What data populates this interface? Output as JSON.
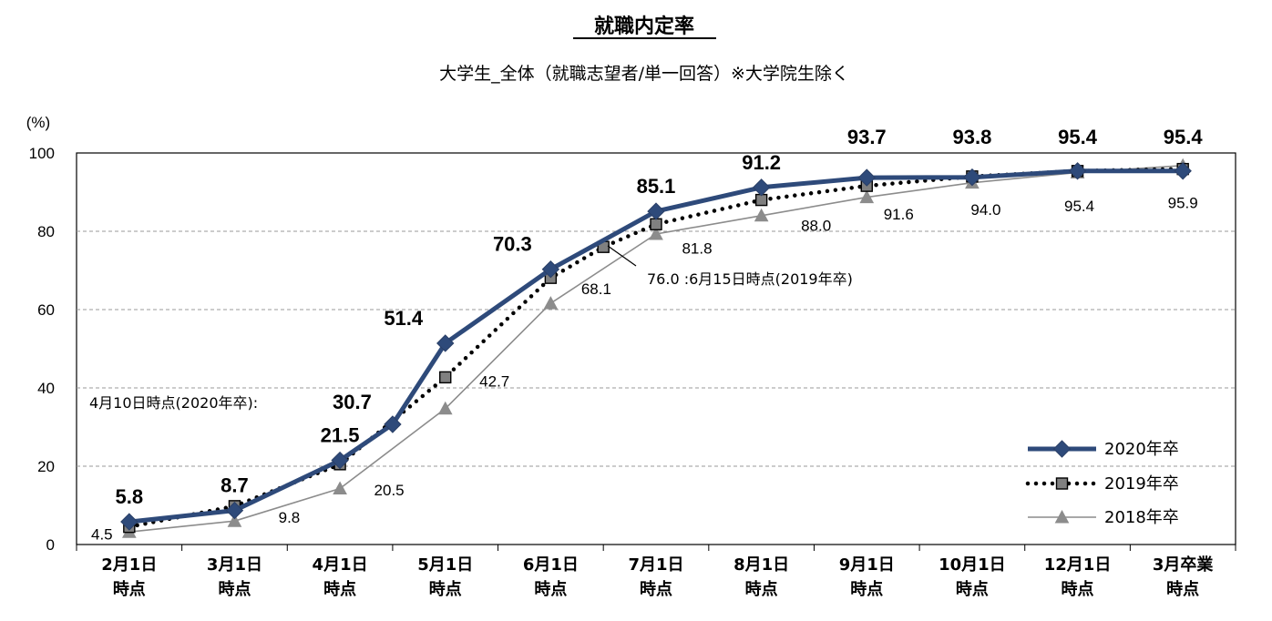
{
  "chart_data": {
    "type": "line",
    "title": "就職内定率",
    "subtitle": "大学生_全体（就職志望者/単一回答）※大学院生除く",
    "y_unit": "(%)",
    "ylim": [
      0,
      100
    ],
    "y_ticks": [
      "0",
      "20",
      "40",
      "60",
      "80",
      "100"
    ],
    "grid": "horizontal-dashed",
    "legend_position": "bottom-right",
    "categories": [
      [
        "2月1日",
        "時点"
      ],
      [
        "3月1日",
        "時点"
      ],
      [
        "4月1日",
        "時点"
      ],
      [
        "5月1日",
        "時点"
      ],
      [
        "6月1日",
        "時点"
      ],
      [
        "7月1日",
        "時点"
      ],
      [
        "8月1日",
        "時点"
      ],
      [
        "9月1日",
        "時点"
      ],
      [
        "10月1日",
        "時点"
      ],
      [
        "12月1日",
        "時点"
      ],
      [
        "3月卒業",
        "時点"
      ]
    ],
    "series": [
      {
        "name": "2020年卒",
        "color": "#2e4a7a",
        "marker": "diamond",
        "style": "solid-thick",
        "x": [
          0,
          1,
          2,
          2.5,
          3,
          4,
          5,
          6,
          7,
          8,
          9,
          10
        ],
        "y": [
          5.8,
          8.7,
          21.5,
          30.7,
          51.4,
          70.3,
          85.1,
          91.2,
          93.7,
          93.8,
          95.4,
          95.4
        ],
        "labels": [
          "5.8",
          "8.7",
          "21.5",
          "",
          "51.4",
          "70.3",
          "85.1",
          "91.2",
          "93.7",
          "93.8",
          "95.4",
          "95.4"
        ]
      },
      {
        "name": "2019年卒",
        "color": "#000000",
        "marker_fill": "#808080",
        "marker": "square",
        "style": "dotted",
        "x": [
          0,
          1,
          2,
          3,
          4,
          4.5,
          5,
          6,
          7,
          8,
          9,
          10
        ],
        "y": [
          4.5,
          9.8,
          20.5,
          42.7,
          68.1,
          76.0,
          81.8,
          88.0,
          91.6,
          94.0,
          95.4,
          95.9
        ],
        "labels": [
          "4.5",
          "9.8",
          "20.5",
          "42.7",
          "68.1",
          "",
          "81.8",
          "88.0",
          "91.6",
          "94.0",
          "95.4",
          "95.9"
        ]
      },
      {
        "name": "2018年卒",
        "color": "#8c8c8c",
        "marker": "triangle",
        "style": "solid-thin",
        "x": [
          0,
          1,
          2,
          3,
          4,
          5,
          6,
          7,
          8,
          9,
          10
        ],
        "y": [
          3.2,
          6.0,
          14.3,
          34.7,
          61.6,
          79.3,
          84.0,
          88.7,
          92.4,
          95.0,
          96.8
        ],
        "labels": []
      }
    ],
    "annotations": [
      {
        "text": "4月10日時点(2020年卒):",
        "value": "30.7"
      },
      {
        "text": "76.0 :6月15日時点(2019年卒)"
      }
    ]
  }
}
